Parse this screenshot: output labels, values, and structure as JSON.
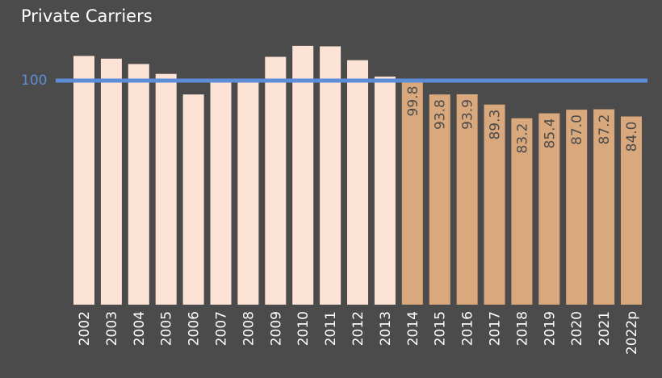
{
  "chart_data": {
    "type": "bar",
    "title": "Private Carriers",
    "xlabel": "",
    "ylabel": "",
    "reference_line": {
      "value": 100,
      "label": "100",
      "color": "#5b8ed6"
    },
    "categories": [
      "2002",
      "2003",
      "2004",
      "2005",
      "2006",
      "2007",
      "2008",
      "2009",
      "2010",
      "2011",
      "2012",
      "2013",
      "2014",
      "2015",
      "2016",
      "2017",
      "2018",
      "2019",
      "2020",
      "2021",
      "2022p"
    ],
    "values": [
      111.0,
      109.8,
      107.4,
      103.0,
      93.8,
      100.2,
      100.2,
      110.6,
      115.5,
      115.3,
      109.1,
      101.8,
      99.8,
      93.8,
      93.9,
      89.3,
      83.2,
      85.4,
      87.0,
      87.2,
      84.0
    ],
    "data_labels": [
      null,
      null,
      null,
      null,
      null,
      null,
      null,
      null,
      null,
      null,
      null,
      null,
      "99.8",
      "93.8",
      "93.9",
      "89.3",
      "83.2",
      "85.4",
      "87.0",
      "87.2",
      "84.0"
    ],
    "colors": {
      "early": "#fce3d5",
      "recent": "#d9a87c",
      "background": "#4b4b4b"
    },
    "recent_from_index": 12,
    "ylim": [
      0,
      124
    ],
    "grid": false,
    "legend": "none"
  }
}
